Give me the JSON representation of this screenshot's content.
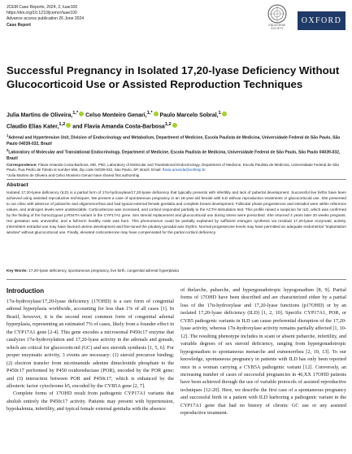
{
  "header": {
    "journal_line": "JCEM Case Reports, 2024, 2, luae100",
    "doi": "https://doi.org/10.1210/jcemcr/luae100",
    "advance_access": "Advance access publication 26 June 2024",
    "article_type": "Case Report"
  },
  "logos": {
    "society_line1": "ENDOCRINE",
    "society_line2": "SOCIETY",
    "publisher": "OXFORD"
  },
  "article": {
    "title": "Successful Pregnancy in Isolated 17,20-lyase Deficiency Without Glucocorticoid Use or Assisted Reproduction Techniques",
    "authors_line1": "Julia Martins de Oliveira,",
    "authors_line1_sup": "1,*",
    "authors_line1b": " Celso Monteiro Genari,",
    "authors_line1b_sup": "1,*",
    "authors_line1c": " Paulo Marcelo Sobral,",
    "authors_line1c_sup": "1",
    "authors_line2": "Claudio Elias Kater,",
    "authors_line2_sup": "1,2",
    "authors_line2b": " and Flavia Amanda Costa-Barbosa",
    "authors_line2b_sup": "1,2",
    "affiliation1_sup": "1",
    "affiliation1": "Adrenal and Hypertension Unit, Division of Endocrinology and Metabolism, Department of Medicine, Escola Paulista de Medicina, Universidade Federal de São Paulo, São Paulo 04039-032, Brazil",
    "affiliation2_sup": "2",
    "affiliation2": "Laboratory of Molecular and Translational Endocrinology, Department of Medicine, Escola Paulista de Medicina, Universidade Federal de São Paulo, São Paulo 04039-032, Brazil",
    "correspondence_label": "Correspondence:",
    "correspondence": "Flavia Amanda Costa-Barbosa, MD, PhD, Laboratory of Molecular and Translational Endocrinology, Department of Medicine, Escola Paulista de Medicina, Universidade Federal de São Paulo, Rua Pedro de Toledo st number 669, Zip code 04039-032, Sao Paulo, SP, Brazil. Email:",
    "correspondence_email": "flavia.amanda@unifesp.br",
    "equal_contribution": "*Julia Martins de Oliveira and Celso Monteiro Genari have shared first authorship."
  },
  "abstract": {
    "heading": "Abstract",
    "text": "Isolated 17,20-lyase deficiency (ILD) is a partial form of 17α-hydroxylase/17,20-lyase deficiency that typically presents with infertility and lack of pubertal development. Successful live births have been achieved using assisted reproductive techniques. We present a case of spontaneous pregnancy in an 18-year-old female with ILD without reproduction treatments or glucocorticoid use. She presented to our clinic with absence of pubarche and oligomenorrhea and had typical external female genitalia and complete breast development. Follicular phase progesterone and estradiol were within reference values, and androgen levels were undetectable. Corticosterone was increased, and cortisol responded partially to the ACTH-stimulation test. This profile raised a suspicion for ILD, which was confirmed by the finding of the homozygous p.R347H variant in the CYP17A1 gene. Sex steroid replacement and glucocorticoid use during stress were prescribed. She returned 2 years later 20 weeks pregnant. Her gestation was uneventful, and a full-term healthy male was born. This phenomenon could be partially explained by sufficient estrogen synthesis via residual 17,20-lyase enzymatic activity. Intermittent estradiol use may have favored uterine development and fine-tuned the pituitary-gonadal axis rhythm. Normal progesterone levels may have permitted an adequate endometrial “implantation window” without glucocorticoid use. Finally, elevated corticosterone may have compensated for the partial cortisol deficiency.",
    "keywords_label": "Key Words:",
    "keywords": "17,20-lyase deficiency, spontaneous pregnancy, live birth, congenital adrenal hyperplasia"
  },
  "introduction": {
    "heading": "Introduction",
    "col1_p1": "17α-hydroxylase/17,20-lyase deficiency (17OHD) is a rare form of congenital adrenal hyperplasia worldwide, accounting for less than 1% of all cases [1]. In Brazil, however, it is the second most common form of congenital adrenal hyperplasia, representing an estimated 7% of cases, likely from a founder effect in the CYP17A1 gene [2-4]. This gene encodes a microsomal P450c17 enzyme that catalyzes 17α-hydroxylation and 17,20-lyase activity in the adrenals and gonads, which are critical for glucocorticoid (GC) and sex steroids synthesis [1, 5, 6]. For proper enzymatic activity, 3 events are necessary: (1) steroid precursor binding; (2) electron transfer from nicotinamide adenine dinucleotide phosphate to the P450c17 performed by P450 oxidoreductase (POR), encoded by the POR gene; and (3) interaction between POR and P450c17, which is enhanced by the allosteric factor cytochrome b5, encoded by the CYB5A gene [2, 7].",
    "col1_p2": "Complete forms of 17OHD result from pathogenic CYP17A1 variants that abolish entirely the P450c17 activity. Patients may present with hypertension, hypokalemia, infertility, and typical female external genitalia with the absence",
    "col2_p1": "of thelarche, pubarche, and hypergonadotropic hypogonadism [8, 9]. Partial forms of 17OHD have been described and are characterized either by a partial loss of the 17α-hydroxylase and 17,20-lyase functions (p17OHD) or by an isolated 17,20-lyase deficiency (ILD) [1, 2, 10]. Specific CYP17A1, POR, or CYB5 pathogenic variants in ILD can cause preferential disruption of the 17,20-lyase activity, whereas 17α-hydroxylase activity remains partially affected [1, 10-12]. The resulting phenotype includes in scant or absent pubarche, infertility, and variable degrees of sex steroid deficiency, ranging from hypergonadotropic hypogonadism to spontaneous menarche and eumenorrhea [2, 10, 13]. To our knowledge, spontaneous pregnancy in patients with ILD has only been reported once in a woman carrying a CYB5A pathogenic variant [12]. Conversely, an increasing number of cases of successful pregnancies in 46,XX 17OHD patients have been achieved through the use of variable protocols of assisted reproductive techniques [12-20]. Here, we describe the first case of a spontaneous pregnancy and successful birth in a patient with ILD harboring a pathogenic variant in the CYP17A1 gene that had no history of chronic GC use or any assisted reproductive treatment."
  },
  "colors": {
    "orcid": "#a6ce39",
    "oxford_bg": "#1f3a66",
    "link": "#1c56a8"
  }
}
